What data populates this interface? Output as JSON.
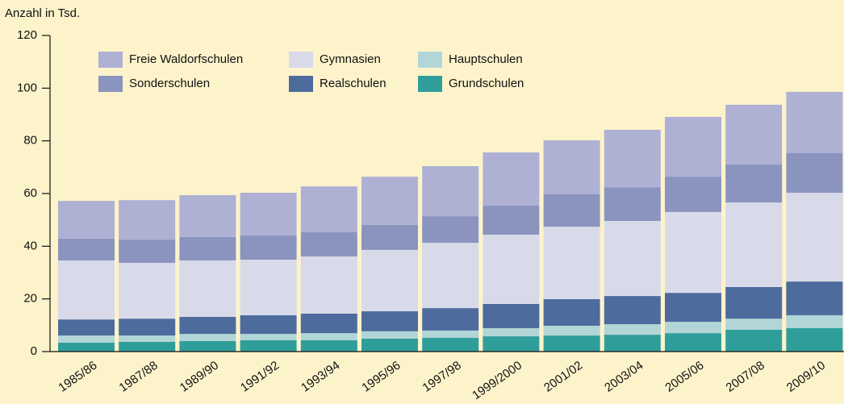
{
  "chart_data": {
    "type": "stacked_bar",
    "y_axis_label": "Anzahl in Tsd.",
    "categories": [
      "1985/86",
      "1987/88",
      "1989/90",
      "1991/92",
      "1993/94",
      "1995/96",
      "1997/98",
      "1999/2000",
      "2001/02",
      "2003/04",
      "2005/06",
      "2007/08",
      "2009/10"
    ],
    "series": [
      {
        "name": "Grundschulen",
        "color": "#2f9e9b",
        "values": [
          3.4,
          3.7,
          4.0,
          4.3,
          4.3,
          4.9,
          5.2,
          5.8,
          6.1,
          6.4,
          7.0,
          8.3,
          8.9
        ]
      },
      {
        "name": "Hauptschulen",
        "color": "#b2d5d7",
        "values": [
          2.7,
          2.4,
          2.7,
          2.4,
          2.7,
          2.8,
          2.8,
          3.1,
          3.7,
          4.0,
          4.3,
          4.2,
          4.9
        ]
      },
      {
        "name": "Realschulen",
        "color": "#4d6b9d",
        "values": [
          6.1,
          6.4,
          6.5,
          7.1,
          7.4,
          7.6,
          8.5,
          9.2,
          10.1,
          10.7,
          11.0,
          12.0,
          12.8
        ]
      },
      {
        "name": "Gymnasien",
        "color": "#d9dae9",
        "values": [
          22.4,
          21.2,
          21.4,
          21.1,
          21.7,
          23.3,
          24.8,
          26.3,
          27.5,
          28.5,
          30.7,
          32.1,
          33.7
        ]
      },
      {
        "name": "Sonderschulen",
        "color": "#8a94bf",
        "values": [
          8.3,
          8.8,
          8.9,
          9.2,
          9.2,
          9.5,
          10.1,
          11.0,
          12.3,
          12.8,
          13.4,
          14.4,
          15.0
        ]
      },
      {
        "name": "Freie Waldorfschulen",
        "color": "#aeb1d3",
        "values": [
          14.3,
          15.0,
          15.9,
          16.2,
          17.4,
          18.3,
          19.0,
          20.2,
          20.5,
          21.8,
          22.7,
          22.7,
          23.3
        ]
      }
    ],
    "ylim": [
      0,
      120
    ],
    "yticks": [
      0,
      20,
      40,
      60,
      80,
      100,
      120
    ]
  }
}
